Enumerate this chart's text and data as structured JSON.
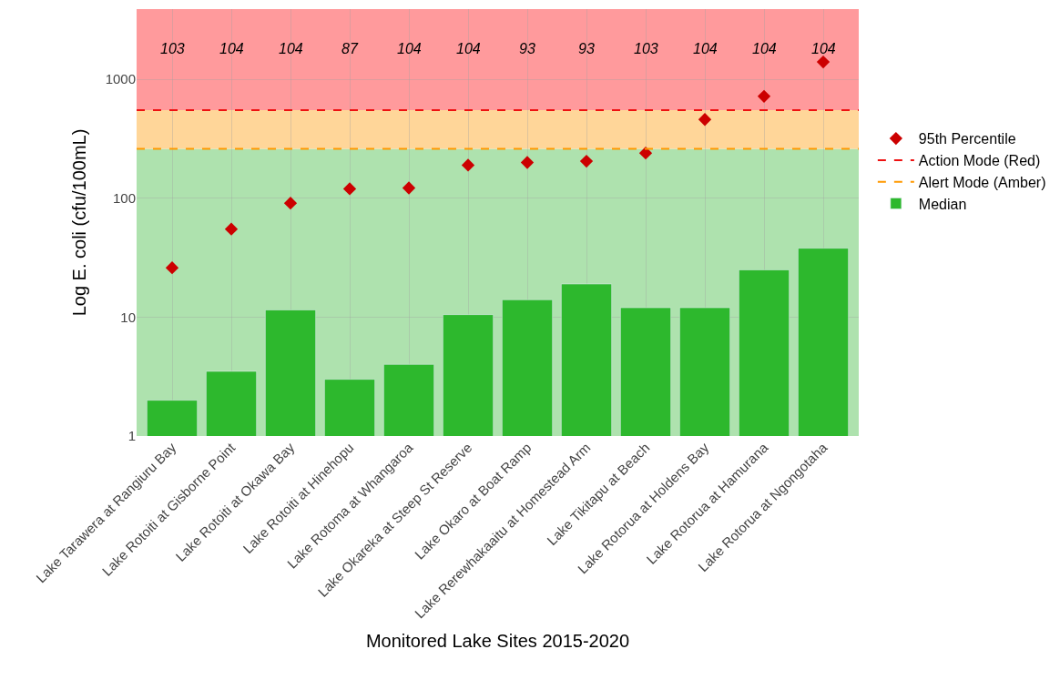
{
  "chart_data": {
    "type": "bar",
    "xlabel": "Monitored Lake Sites 2015-2020",
    "ylabel": "Log E. coli (cfu/100mL)",
    "categories": [
      "Lake Tarawera at Rangiuru Bay",
      "Lake Rotoiti at Gisborne Point",
      "Lake Rotoiti at Okawa Bay",
      "Lake Rotoiti at Hinehopu",
      "Lake Rotoma at Whangaroa",
      "Lake Okareka at Steep St Reserve",
      "Lake Okaro at Boat Ramp",
      "Lake Rerewhakaaitu at Homestead Arm",
      "Lake Tikitapu at Beach",
      "Lake Rotorua at Holdens Bay",
      "Lake Rotorua at Hamurana",
      "Lake Rotorua at Ngongotaha"
    ],
    "series": [
      {
        "name": "Median",
        "color": "#2db82d",
        "values": [
          2,
          3.5,
          11.5,
          3,
          4,
          10.5,
          14,
          19,
          12,
          12,
          25,
          38
        ]
      },
      {
        "name": "95th Percentile",
        "type": "scatter",
        "color": "#cc0000",
        "marker": "diamond",
        "values": [
          26,
          55,
          91,
          120,
          122,
          190,
          200,
          205,
          240,
          460,
          720,
          1400
        ]
      }
    ],
    "log": "y",
    "ylim": [
      1,
      3900
    ],
    "yticks": [
      1,
      10,
      100,
      1000
    ],
    "grid": true,
    "legend": "right",
    "ref_lines": [
      {
        "axis": "y",
        "value": 550,
        "label": "Action Mode (Red)",
        "color": "#ee1111",
        "line_style": "dashed"
      },
      {
        "axis": "y",
        "value": 260,
        "label": "Alert Mode (Amber)",
        "color": "#ff9900",
        "line_style": "dashed"
      }
    ],
    "bands": [
      {
        "axis": "y",
        "from": 1,
        "to": 260,
        "color": "#aee2ae"
      },
      {
        "axis": "y",
        "from": 260,
        "to": 550,
        "color": "#ffd699"
      },
      {
        "axis": "y",
        "from": 550,
        "to": 3900,
        "color": "#ff9a9c"
      }
    ],
    "annotations": [
      "103",
      "104",
      "104",
      "87",
      "104",
      "104",
      "93",
      "93",
      "103",
      "104",
      "104",
      "104"
    ]
  }
}
